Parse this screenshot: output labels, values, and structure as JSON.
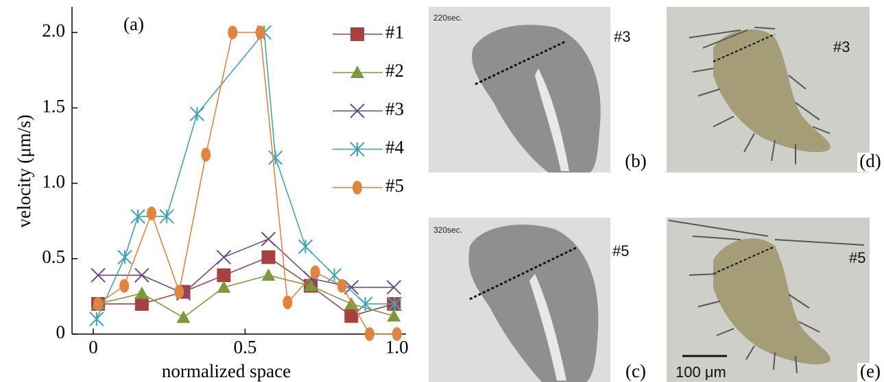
{
  "chart_data": {
    "type": "line",
    "annotation": "(a)",
    "xlabel": "normalized space",
    "ylabel": "velocity (μm/s)",
    "xlim": [
      -0.07,
      1.03
    ],
    "ylim": [
      0,
      2.17
    ],
    "xticks": [
      0,
      0.5,
      {
        "value": 1,
        "label": "1.0"
      }
    ],
    "yticks": [
      0,
      0.5,
      {
        "value": 1,
        "label": "1.0"
      },
      1.5,
      {
        "value": 2,
        "label": "2.0"
      }
    ],
    "legend": "upper right",
    "series": [
      {
        "name": "#1",
        "color": "#a6413f",
        "marker": "square",
        "x": [
          0.016,
          0.16,
          0.297,
          0.43,
          0.577,
          0.716,
          0.85,
          0.99
        ],
        "values": [
          0.2,
          0.2,
          0.28,
          0.39,
          0.51,
          0.32,
          0.12,
          0.2
        ]
      },
      {
        "name": "#2",
        "color": "#7a9a3c",
        "marker": "triangle",
        "x": [
          0.016,
          0.16,
          0.297,
          0.43,
          0.577,
          0.716,
          0.85,
          0.99
        ],
        "values": [
          0.2,
          0.27,
          0.11,
          0.31,
          0.39,
          0.32,
          0.2,
          0.12
        ]
      },
      {
        "name": "#3",
        "color": "#6a4a8c",
        "marker": "x",
        "x": [
          0.016,
          0.16,
          0.297,
          0.43,
          0.577,
          0.716,
          0.85,
          0.99
        ],
        "values": [
          0.39,
          0.39,
          0.27,
          0.51,
          0.63,
          0.37,
          0.31,
          0.31
        ]
      },
      {
        "name": "#4",
        "color": "#3ea3b8",
        "marker": "star",
        "x": [
          0.011,
          0.104,
          0.147,
          0.242,
          0.342,
          0.563,
          0.6,
          0.699,
          0.794,
          0.896,
          0.993
        ],
        "values": [
          0.1,
          0.51,
          0.78,
          0.78,
          1.46,
          2.0,
          1.17,
          0.58,
          0.39,
          0.2,
          0.2
        ]
      },
      {
        "name": "#5",
        "color": "#e0843e",
        "marker": "circle",
        "x": [
          0.016,
          0.102,
          0.192,
          0.283,
          0.371,
          0.459,
          0.55,
          0.64,
          0.731,
          0.819,
          0.91,
          1.0
        ],
        "values": [
          0.2,
          0.32,
          0.8,
          0.28,
          1.19,
          2.0,
          2.0,
          0.21,
          0.41,
          0.32,
          0.0,
          0.0
        ]
      }
    ]
  },
  "panels": {
    "b": {
      "time": "220sec.",
      "sample": "#3",
      "label": "(b)"
    },
    "d": {
      "sample": "#3",
      "label": "(d)"
    },
    "c": {
      "time": "320sec.",
      "sample": "#5",
      "label": "(c)"
    },
    "e": {
      "sample": "#5",
      "label": "(e)",
      "scale": "100 μm"
    }
  }
}
